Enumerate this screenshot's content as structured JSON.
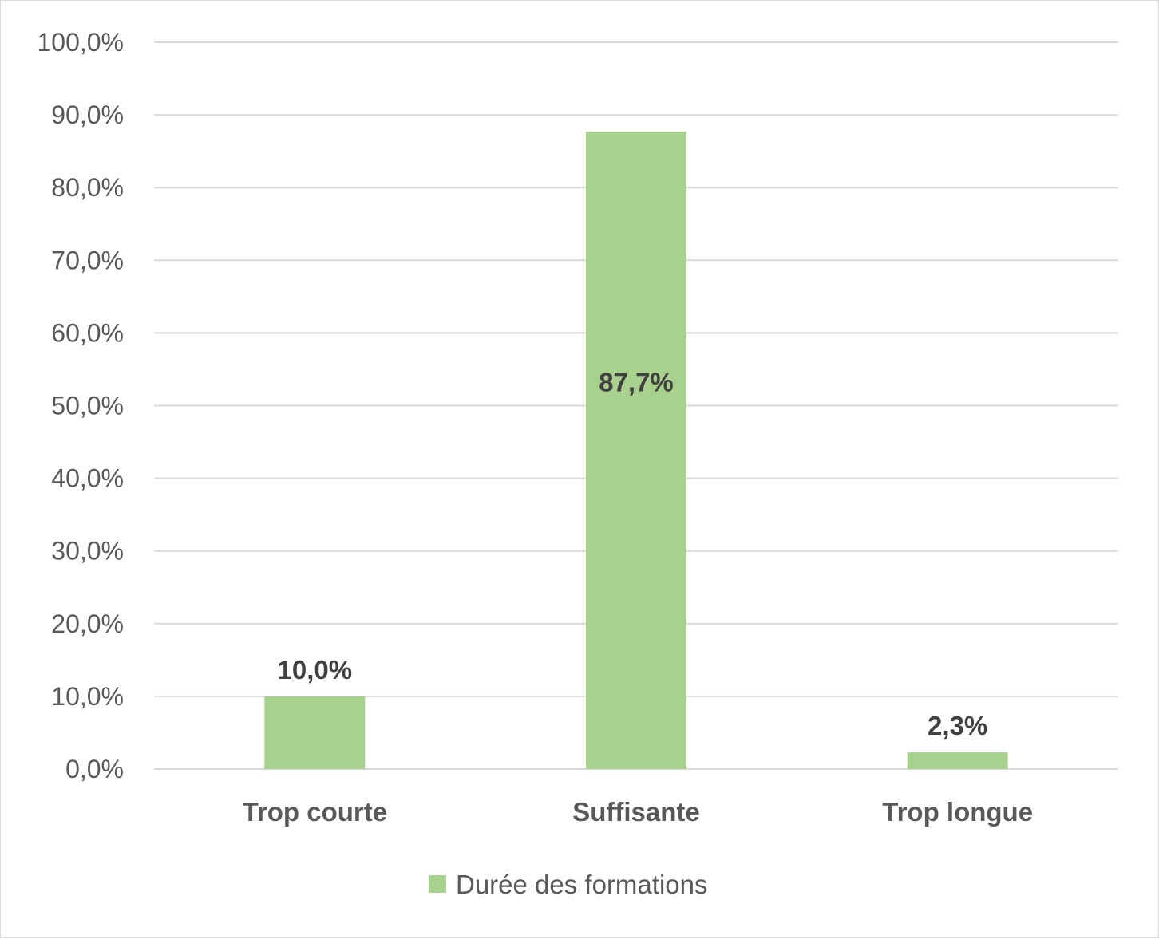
{
  "chart_data": {
    "type": "bar",
    "categories": [
      "Trop courte",
      "Suffisante",
      "Trop longue"
    ],
    "series": [
      {
        "name": "Durée des formations",
        "values": [
          10.0,
          87.7,
          2.3
        ],
        "labels": [
          "10,0%",
          "87,7%",
          "2,3%"
        ],
        "color": "#a9d18e"
      }
    ],
    "ylim": [
      0,
      100
    ],
    "yticks": [
      {
        "value": 0,
        "label": "0,0%"
      },
      {
        "value": 10,
        "label": "10,0%"
      },
      {
        "value": 20,
        "label": "20,0%"
      },
      {
        "value": 30,
        "label": "30,0%"
      },
      {
        "value": 40,
        "label": "40,0%"
      },
      {
        "value": 50,
        "label": "50,0%"
      },
      {
        "value": 60,
        "label": "60,0%"
      },
      {
        "value": 70,
        "label": "70,0%"
      },
      {
        "value": 80,
        "label": "80,0%"
      },
      {
        "value": 90,
        "label": "90,0%"
      },
      {
        "value": 100,
        "label": "100,0%"
      }
    ],
    "grid": true,
    "legend_position": "bottom",
    "gridline_color": "#d9d9d9"
  }
}
